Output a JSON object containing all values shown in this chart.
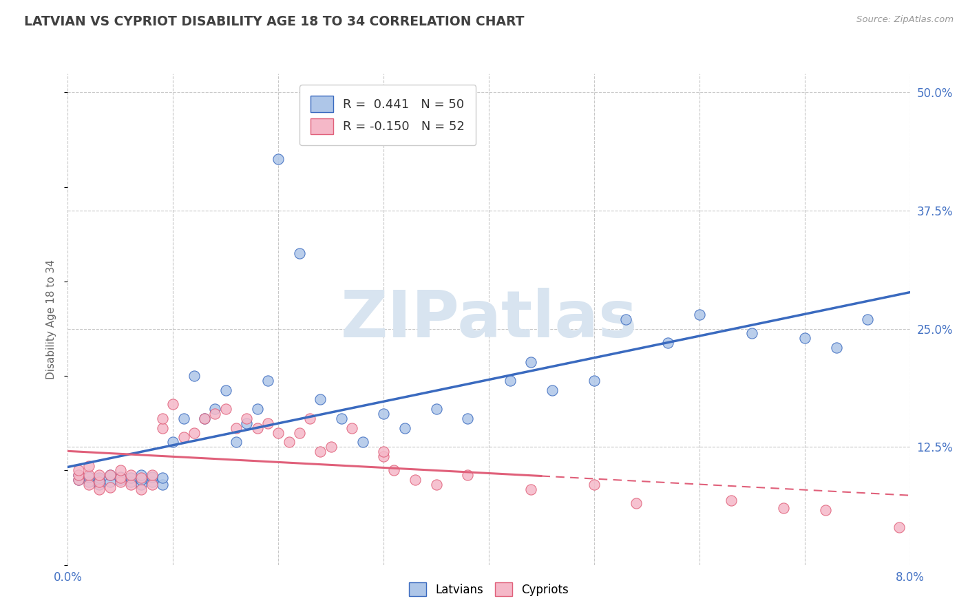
{
  "title": "LATVIAN VS CYPRIOT DISABILITY AGE 18 TO 34 CORRELATION CHART",
  "source_text": "Source: ZipAtlas.com",
  "ylabel": "Disability Age 18 to 34",
  "xlim": [
    0.0,
    0.08
  ],
  "ylim": [
    0.0,
    0.52
  ],
  "xticks": [
    0.0,
    0.01,
    0.02,
    0.03,
    0.04,
    0.05,
    0.06,
    0.07,
    0.08
  ],
  "xticklabels": [
    "0.0%",
    "",
    "",
    "",
    "",
    "",
    "",
    "",
    "8.0%"
  ],
  "yticks": [
    0.0,
    0.125,
    0.25,
    0.375,
    0.5
  ],
  "yticklabels": [
    "",
    "12.5%",
    "25.0%",
    "37.5%",
    "50.0%"
  ],
  "latvian_R": 0.441,
  "latvian_N": 50,
  "cypriot_R": -0.15,
  "cypriot_N": 52,
  "latvian_color": "#aec6e8",
  "cypriot_color": "#f5b8c8",
  "latvian_line_color": "#3a6abf",
  "cypriot_line_color": "#e0607a",
  "background_color": "#ffffff",
  "grid_color": "#c8c8c8",
  "title_color": "#404040",
  "watermark_color": "#d8e4f0",
  "latvian_trend": [
    0.0,
    0.08,
    0.072,
    0.252
  ],
  "cypriot_trend": [
    0.0,
    0.045,
    0.092,
    0.075
  ],
  "cypriot_trend_dashed": [
    0.045,
    0.08,
    0.075,
    0.062
  ],
  "latvians_scatter_x": [
    0.001,
    0.001,
    0.002,
    0.002,
    0.003,
    0.003,
    0.003,
    0.004,
    0.004,
    0.005,
    0.005,
    0.006,
    0.006,
    0.007,
    0.007,
    0.007,
    0.008,
    0.008,
    0.009,
    0.009,
    0.01,
    0.011,
    0.012,
    0.013,
    0.014,
    0.015,
    0.016,
    0.017,
    0.018,
    0.019,
    0.02,
    0.022,
    0.024,
    0.026,
    0.028,
    0.03,
    0.032,
    0.035,
    0.038,
    0.042,
    0.044,
    0.046,
    0.05,
    0.053,
    0.057,
    0.06,
    0.065,
    0.07,
    0.073,
    0.076
  ],
  "latvians_scatter_y": [
    0.09,
    0.095,
    0.088,
    0.093,
    0.085,
    0.09,
    0.092,
    0.088,
    0.095,
    0.09,
    0.093,
    0.088,
    0.092,
    0.085,
    0.09,
    0.095,
    0.088,
    0.093,
    0.085,
    0.092,
    0.13,
    0.155,
    0.2,
    0.155,
    0.165,
    0.185,
    0.13,
    0.15,
    0.165,
    0.195,
    0.43,
    0.33,
    0.175,
    0.155,
    0.13,
    0.16,
    0.145,
    0.165,
    0.155,
    0.195,
    0.215,
    0.185,
    0.195,
    0.26,
    0.235,
    0.265,
    0.245,
    0.24,
    0.23,
    0.26
  ],
  "cypriots_scatter_x": [
    0.001,
    0.001,
    0.001,
    0.002,
    0.002,
    0.002,
    0.003,
    0.003,
    0.003,
    0.004,
    0.004,
    0.005,
    0.005,
    0.005,
    0.006,
    0.006,
    0.007,
    0.007,
    0.008,
    0.008,
    0.009,
    0.009,
    0.01,
    0.011,
    0.012,
    0.013,
    0.014,
    0.015,
    0.016,
    0.017,
    0.018,
    0.019,
    0.02,
    0.021,
    0.022,
    0.023,
    0.024,
    0.025,
    0.027,
    0.03,
    0.03,
    0.031,
    0.033,
    0.035,
    0.038,
    0.044,
    0.05,
    0.054,
    0.063,
    0.068,
    0.072,
    0.079
  ],
  "cypriots_scatter_y": [
    0.09,
    0.095,
    0.1,
    0.085,
    0.095,
    0.105,
    0.08,
    0.088,
    0.095,
    0.082,
    0.095,
    0.088,
    0.092,
    0.1,
    0.085,
    0.095,
    0.08,
    0.092,
    0.085,
    0.095,
    0.145,
    0.155,
    0.17,
    0.135,
    0.14,
    0.155,
    0.16,
    0.165,
    0.145,
    0.155,
    0.145,
    0.15,
    0.14,
    0.13,
    0.14,
    0.155,
    0.12,
    0.125,
    0.145,
    0.115,
    0.12,
    0.1,
    0.09,
    0.085,
    0.095,
    0.08,
    0.085,
    0.065,
    0.068,
    0.06,
    0.058,
    0.04
  ]
}
